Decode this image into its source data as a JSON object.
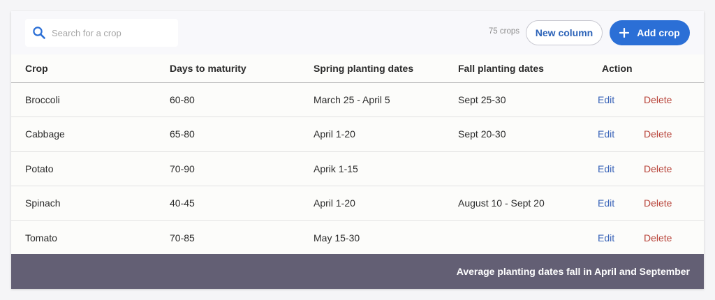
{
  "search": {
    "placeholder": "Search for a crop",
    "value": ""
  },
  "count_label": "75 crops",
  "buttons": {
    "new_column": "New column",
    "add_crop": "Add crop"
  },
  "icons": {
    "search": "search-icon",
    "add": "plus-icon"
  },
  "colors": {
    "accent": "#2b6fd6",
    "edit": "#3a64b8",
    "delete": "#b8443a",
    "footer": "#635f74"
  },
  "table": {
    "headers": [
      "Crop",
      "Days to maturity",
      "Spring planting dates",
      "Fall planting dates",
      "Action"
    ],
    "rows": [
      {
        "crop": "Broccoli",
        "days": "60-80",
        "spring": "March 25 - April 5",
        "fall": "Sept 25-30",
        "edit": "Edit",
        "delete": "Delete"
      },
      {
        "crop": "Cabbage",
        "days": "65-80",
        "spring": "April 1-20",
        "fall": "Sept 20-30",
        "edit": "Edit",
        "delete": "Delete"
      },
      {
        "crop": "Potato",
        "days": "70-90",
        "spring": "Aprik 1-15",
        "fall": "",
        "edit": "Edit",
        "delete": "Delete"
      },
      {
        "crop": "Spinach",
        "days": "40-45",
        "spring": "April 1-20",
        "fall": "August 10 - Sept 20",
        "edit": "Edit",
        "delete": "Delete"
      },
      {
        "crop": "Tomato",
        "days": "70-85",
        "spring": "May 15-30",
        "fall": "",
        "edit": "Edit",
        "delete": "Delete"
      }
    ]
  },
  "footer_text": "Average planting dates fall in April and September"
}
